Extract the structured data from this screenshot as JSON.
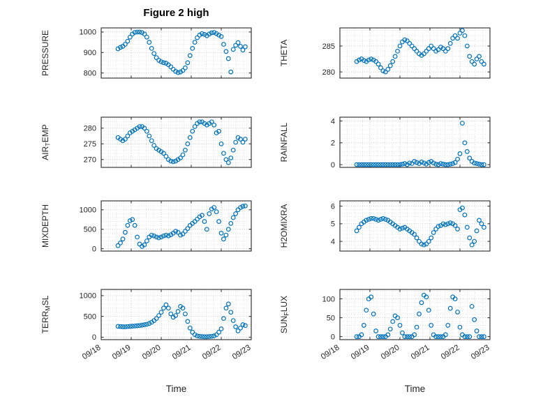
{
  "chart_data": {
    "type": "scatter",
    "title": "Figure 2 high",
    "xlabel": "Time",
    "marker": "circle-open",
    "marker_color": "#0072BD",
    "axis_color": "#262626",
    "grid_major_color": "#bfbfbf",
    "grid_minor_color": "#d8d8d8",
    "grid_style": "dotted",
    "x_range": [
      0,
      5
    ],
    "x_minor_step": 0.25,
    "x_tick_values": [
      0,
      1,
      2,
      3,
      4,
      5
    ],
    "x_tick_labels": [
      "09/18",
      "09/19",
      "09/20",
      "09/21",
      "09/22",
      "09/23"
    ],
    "x": [
      0.56,
      0.64,
      0.72,
      0.8,
      0.88,
      0.96,
      1.04,
      1.12,
      1.2,
      1.28,
      1.36,
      1.44,
      1.52,
      1.6,
      1.68,
      1.76,
      1.84,
      1.92,
      2.0,
      2.08,
      2.16,
      2.24,
      2.32,
      2.4,
      2.48,
      2.56,
      2.64,
      2.72,
      2.8,
      2.88,
      2.96,
      3.04,
      3.12,
      3.2,
      3.28,
      3.36,
      3.44,
      3.52,
      3.6,
      3.68,
      3.76,
      3.84,
      3.92,
      4.0,
      4.08,
      4.16,
      4.24,
      4.32,
      4.4,
      4.48,
      4.56,
      4.64,
      4.72,
      4.8
    ],
    "subplots": [
      {
        "name": "PRESSURE",
        "label_pre": "PRESSURE",
        "label_sub": "",
        "label_post": "",
        "yticks": [
          800,
          900,
          1000
        ],
        "ytick_labels": [
          "800",
          "900",
          "1000"
        ],
        "ylim": [
          775,
          1020
        ],
        "values": [
          918,
          925,
          930,
          940,
          955,
          975,
          990,
          998,
          1000,
          1000,
          997,
          990,
          975,
          950,
          920,
          895,
          875,
          862,
          855,
          850,
          848,
          840,
          830,
          818,
          808,
          802,
          805,
          812,
          825,
          850,
          885,
          920,
          950,
          972,
          985,
          992,
          988,
          982,
          990,
          996,
          998,
          992,
          985,
          978,
          940,
          905,
          870,
          805,
          915,
          935,
          948,
          930,
          912,
          928
        ]
      },
      {
        "name": "THETA",
        "label_pre": "THETA",
        "label_sub": "",
        "label_post": "",
        "yticks": [
          280,
          285
        ],
        "ytick_labels": [
          "280",
          "285"
        ],
        "ylim": [
          278.8,
          288.5
        ],
        "values": [
          282.0,
          282.3,
          282.5,
          282.2,
          282.0,
          282.3,
          282.5,
          282.3,
          282.0,
          281.5,
          280.8,
          280.2,
          280.0,
          280.5,
          281.2,
          282.0,
          283.0,
          284.0,
          285.0,
          285.8,
          286.2,
          286.0,
          285.5,
          285.0,
          284.5,
          284.0,
          283.5,
          283.2,
          283.5,
          284.0,
          284.5,
          285.0,
          284.5,
          284.0,
          284.3,
          284.8,
          284.5,
          284.0,
          284.5,
          285.5,
          286.5,
          287.0,
          286.5,
          287.5,
          288.0,
          287.0,
          285.0,
          283.0,
          282.0,
          281.5,
          282.5,
          283.0,
          282.0,
          281.5
        ]
      },
      {
        "name": "AIR_TEMP",
        "label_pre": "AIR",
        "label_sub": "T",
        "label_post": "EMP",
        "yticks": [
          270,
          275,
          280
        ],
        "ytick_labels": [
          "270",
          "275",
          "280"
        ],
        "ylim": [
          267.5,
          283.5
        ],
        "values": [
          277.0,
          276.5,
          276.0,
          276.5,
          277.5,
          278.5,
          279.0,
          279.5,
          280.0,
          280.5,
          280.5,
          280.0,
          279.0,
          277.5,
          276.0,
          274.5,
          273.5,
          273.0,
          272.5,
          272.0,
          271.0,
          270.0,
          269.5,
          269.3,
          269.5,
          270.0,
          270.5,
          271.5,
          273.0,
          275.0,
          277.0,
          279.0,
          280.5,
          281.5,
          282.0,
          282.0,
          281.5,
          281.0,
          281.5,
          282.0,
          281.0,
          278.5,
          279.0,
          275.0,
          272.0,
          270.0,
          269.0,
          270.5,
          273.0,
          275.5,
          277.0,
          276.5,
          275.5,
          276.5
        ]
      },
      {
        "name": "RAINFALL",
        "label_pre": "RAINFALL",
        "label_sub": "",
        "label_post": "",
        "yticks": [
          0,
          2,
          4
        ],
        "ytick_labels": [
          "0",
          "2",
          "4"
        ],
        "ylim": [
          -0.25,
          4.35
        ],
        "values": [
          0,
          0,
          0,
          0,
          0,
          0,
          0,
          0,
          0,
          0,
          0,
          0,
          0,
          0,
          0,
          0,
          0,
          0,
          0,
          0.05,
          0.1,
          0,
          0.15,
          0.1,
          0.3,
          0.2,
          0.1,
          0.25,
          0.15,
          0.05,
          0.2,
          0.3,
          0.15,
          0.05,
          0,
          0.1,
          0.05,
          0,
          0,
          0.05,
          0.1,
          0.2,
          0.5,
          1.0,
          3.8,
          2.0,
          1.2,
          0.6,
          0.3,
          0.15,
          0.1,
          0.05,
          0,
          0
        ]
      },
      {
        "name": "MIXDEPTH",
        "label_pre": "MIXDEPTH",
        "label_sub": "",
        "label_post": "",
        "yticks": [
          0,
          500,
          1000
        ],
        "ytick_labels": [
          "0",
          "500",
          "1000"
        ],
        "ylim": [
          -60,
          1230
        ],
        "values": [
          80,
          150,
          250,
          420,
          600,
          720,
          750,
          600,
          300,
          120,
          60,
          100,
          200,
          300,
          350,
          330,
          300,
          280,
          300,
          330,
          350,
          330,
          360,
          400,
          450,
          420,
          350,
          380,
          450,
          520,
          600,
          650,
          700,
          760,
          820,
          860,
          700,
          500,
          900,
          1020,
          1060,
          950,
          700,
          400,
          250,
          350,
          500,
          650,
          800,
          900,
          1000,
          1060,
          1090,
          1100
        ]
      },
      {
        "name": "H2OMIXRA",
        "label_pre": "H2OMIXRA",
        "label_sub": "",
        "label_post": "",
        "yticks": [
          4,
          5,
          6
        ],
        "ytick_labels": [
          "4",
          "5",
          "6"
        ],
        "ylim": [
          3.45,
          6.3
        ],
        "values": [
          4.6,
          4.8,
          5.0,
          5.1,
          5.2,
          5.25,
          5.3,
          5.3,
          5.25,
          5.2,
          5.25,
          5.3,
          5.25,
          5.2,
          5.1,
          5.0,
          4.9,
          4.8,
          4.7,
          4.75,
          4.8,
          4.7,
          4.6,
          4.5,
          4.4,
          4.2,
          4.0,
          3.85,
          3.8,
          3.85,
          4.0,
          4.2,
          4.5,
          4.7,
          4.85,
          4.9,
          5.0,
          4.95,
          5.0,
          5.05,
          5.0,
          4.9,
          4.7,
          5.8,
          5.9,
          5.5,
          4.8,
          4.2,
          3.8,
          4.0,
          4.6,
          5.2,
          5.0,
          4.8
        ]
      },
      {
        "name": "TERR_MSL",
        "label_pre": "TERR",
        "label_sub": "M",
        "label_post": "SL",
        "yticks": [
          0,
          500,
          1000
        ],
        "ytick_labels": [
          "0",
          "500",
          "1000"
        ],
        "ylim": [
          -60,
          1150
        ],
        "values": [
          260,
          255,
          250,
          250,
          255,
          260,
          265,
          270,
          275,
          280,
          290,
          300,
          310,
          330,
          360,
          400,
          450,
          520,
          600,
          700,
          780,
          700,
          560,
          480,
          520,
          620,
          740,
          700,
          560,
          380,
          220,
          120,
          60,
          30,
          20,
          15,
          10,
          10,
          15,
          20,
          30,
          60,
          120,
          200,
          450,
          700,
          800,
          600,
          400,
          250,
          150,
          220,
          300,
          280
        ]
      },
      {
        "name": "SUN_FLUX",
        "label_pre": "SUN",
        "label_sub": "F",
        "label_post": "LUX",
        "yticks": [
          0,
          50,
          100
        ],
        "ytick_labels": [
          "0",
          "50",
          "100"
        ],
        "ylim": [
          -8,
          125
        ],
        "values": [
          0,
          0,
          5,
          30,
          70,
          100,
          105,
          60,
          15,
          0,
          0,
          0,
          0,
          5,
          20,
          40,
          55,
          50,
          30,
          10,
          0,
          0,
          0,
          0,
          5,
          25,
          60,
          90,
          110,
          105,
          70,
          30,
          5,
          0,
          0,
          0,
          0,
          5,
          30,
          75,
          105,
          100,
          65,
          25,
          5,
          0,
          0,
          0,
          80,
          45,
          15,
          0,
          0,
          0
        ]
      }
    ]
  }
}
